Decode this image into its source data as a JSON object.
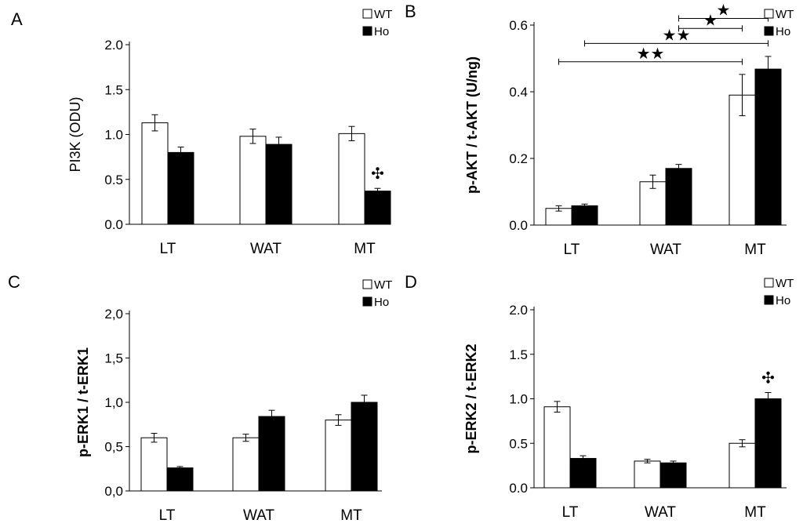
{
  "chart_data": [
    {
      "panel": "A",
      "type": "bar",
      "title": "",
      "xlabel": "",
      "ylabel": "PI3K (ODU)",
      "ylim": [
        0,
        2.0
      ],
      "yticks": [
        "0.0",
        "0.5",
        "1.0",
        "1.5",
        "2.0"
      ],
      "categories": [
        "LT",
        "WAT",
        "MT"
      ],
      "legend": "top-right",
      "series": [
        {
          "name": "WT",
          "values": [
            1.13,
            0.98,
            1.01
          ],
          "errors": [
            0.09,
            0.08,
            0.08
          ],
          "color": "#ffffff"
        },
        {
          "name": "Ho",
          "values": [
            0.8,
            0.89,
            0.37
          ],
          "errors": [
            0.06,
            0.08,
            0.03
          ],
          "color": "#000000"
        }
      ],
      "marks": [
        {
          "series": 1,
          "category": 2,
          "symbol": "✣"
        }
      ]
    },
    {
      "panel": "B",
      "type": "bar",
      "title": "",
      "xlabel": "",
      "ylabel": "p-AKT / t-AKT (U/ng)",
      "ylim": [
        0,
        0.6
      ],
      "yticks": [
        "0.0",
        "0.2",
        "0.4",
        "0.6"
      ],
      "categories": [
        "LT",
        "WAT",
        "MT"
      ],
      "legend": "top-right",
      "series": [
        {
          "name": "WT",
          "values": [
            0.05,
            0.13,
            0.39
          ],
          "errors": [
            0.008,
            0.02,
            0.062
          ],
          "color": "#ffffff"
        },
        {
          "name": "Ho",
          "values": [
            0.058,
            0.17,
            0.468
          ],
          "errors": [
            0.005,
            0.012,
            0.038
          ],
          "color": "#000000"
        }
      ],
      "brackets": [
        {
          "from": [
            0,
            0
          ],
          "to": [
            2,
            0
          ],
          "level": 0.49,
          "label": "★★"
        },
        {
          "from": [
            0,
            1
          ],
          "to": [
            2,
            1
          ],
          "level": 0.545,
          "label": "★★"
        },
        {
          "from": [
            1,
            1
          ],
          "to": [
            2,
            0
          ],
          "level": 0.59,
          "label": "★"
        },
        {
          "from": [
            1,
            1
          ],
          "to": [
            2,
            1
          ],
          "level": 0.62,
          "label": "★"
        }
      ]
    },
    {
      "panel": "C",
      "type": "bar",
      "title": "",
      "xlabel": "",
      "ylabel": "p-ERK1 / t-ERK1",
      "ylim": [
        0,
        2.0
      ],
      "yticks": [
        "0,0",
        "0,5",
        "1,0",
        "1,5",
        "2,0"
      ],
      "categories": [
        "LT",
        "WAT",
        "MT"
      ],
      "legend": "top-right",
      "series": [
        {
          "name": "WT",
          "values": [
            0.6,
            0.6,
            0.8
          ],
          "errors": [
            0.05,
            0.04,
            0.06
          ],
          "color": "#ffffff"
        },
        {
          "name": "Ho",
          "values": [
            0.26,
            0.84,
            1.0
          ],
          "errors": [
            0.015,
            0.07,
            0.08
          ],
          "color": "#000000"
        }
      ]
    },
    {
      "panel": "D",
      "type": "bar",
      "title": "",
      "xlabel": "",
      "ylabel": "p-ERK2 / t-ERK2",
      "ylim": [
        0,
        2.0
      ],
      "yticks": [
        "0.0",
        "0.5",
        "1.0",
        "1.5",
        "2.0"
      ],
      "categories": [
        "LT",
        "WAT",
        "MT"
      ],
      "legend": "top-right",
      "series": [
        {
          "name": "WT",
          "values": [
            0.91,
            0.3,
            0.5
          ],
          "errors": [
            0.06,
            0.02,
            0.04
          ],
          "color": "#ffffff"
        },
        {
          "name": "Ho",
          "values": [
            0.33,
            0.28,
            1.0
          ],
          "errors": [
            0.03,
            0.02,
            0.07
          ],
          "color": "#000000"
        }
      ],
      "marks": [
        {
          "series": 1,
          "category": 2,
          "symbol": "✣"
        }
      ]
    }
  ]
}
